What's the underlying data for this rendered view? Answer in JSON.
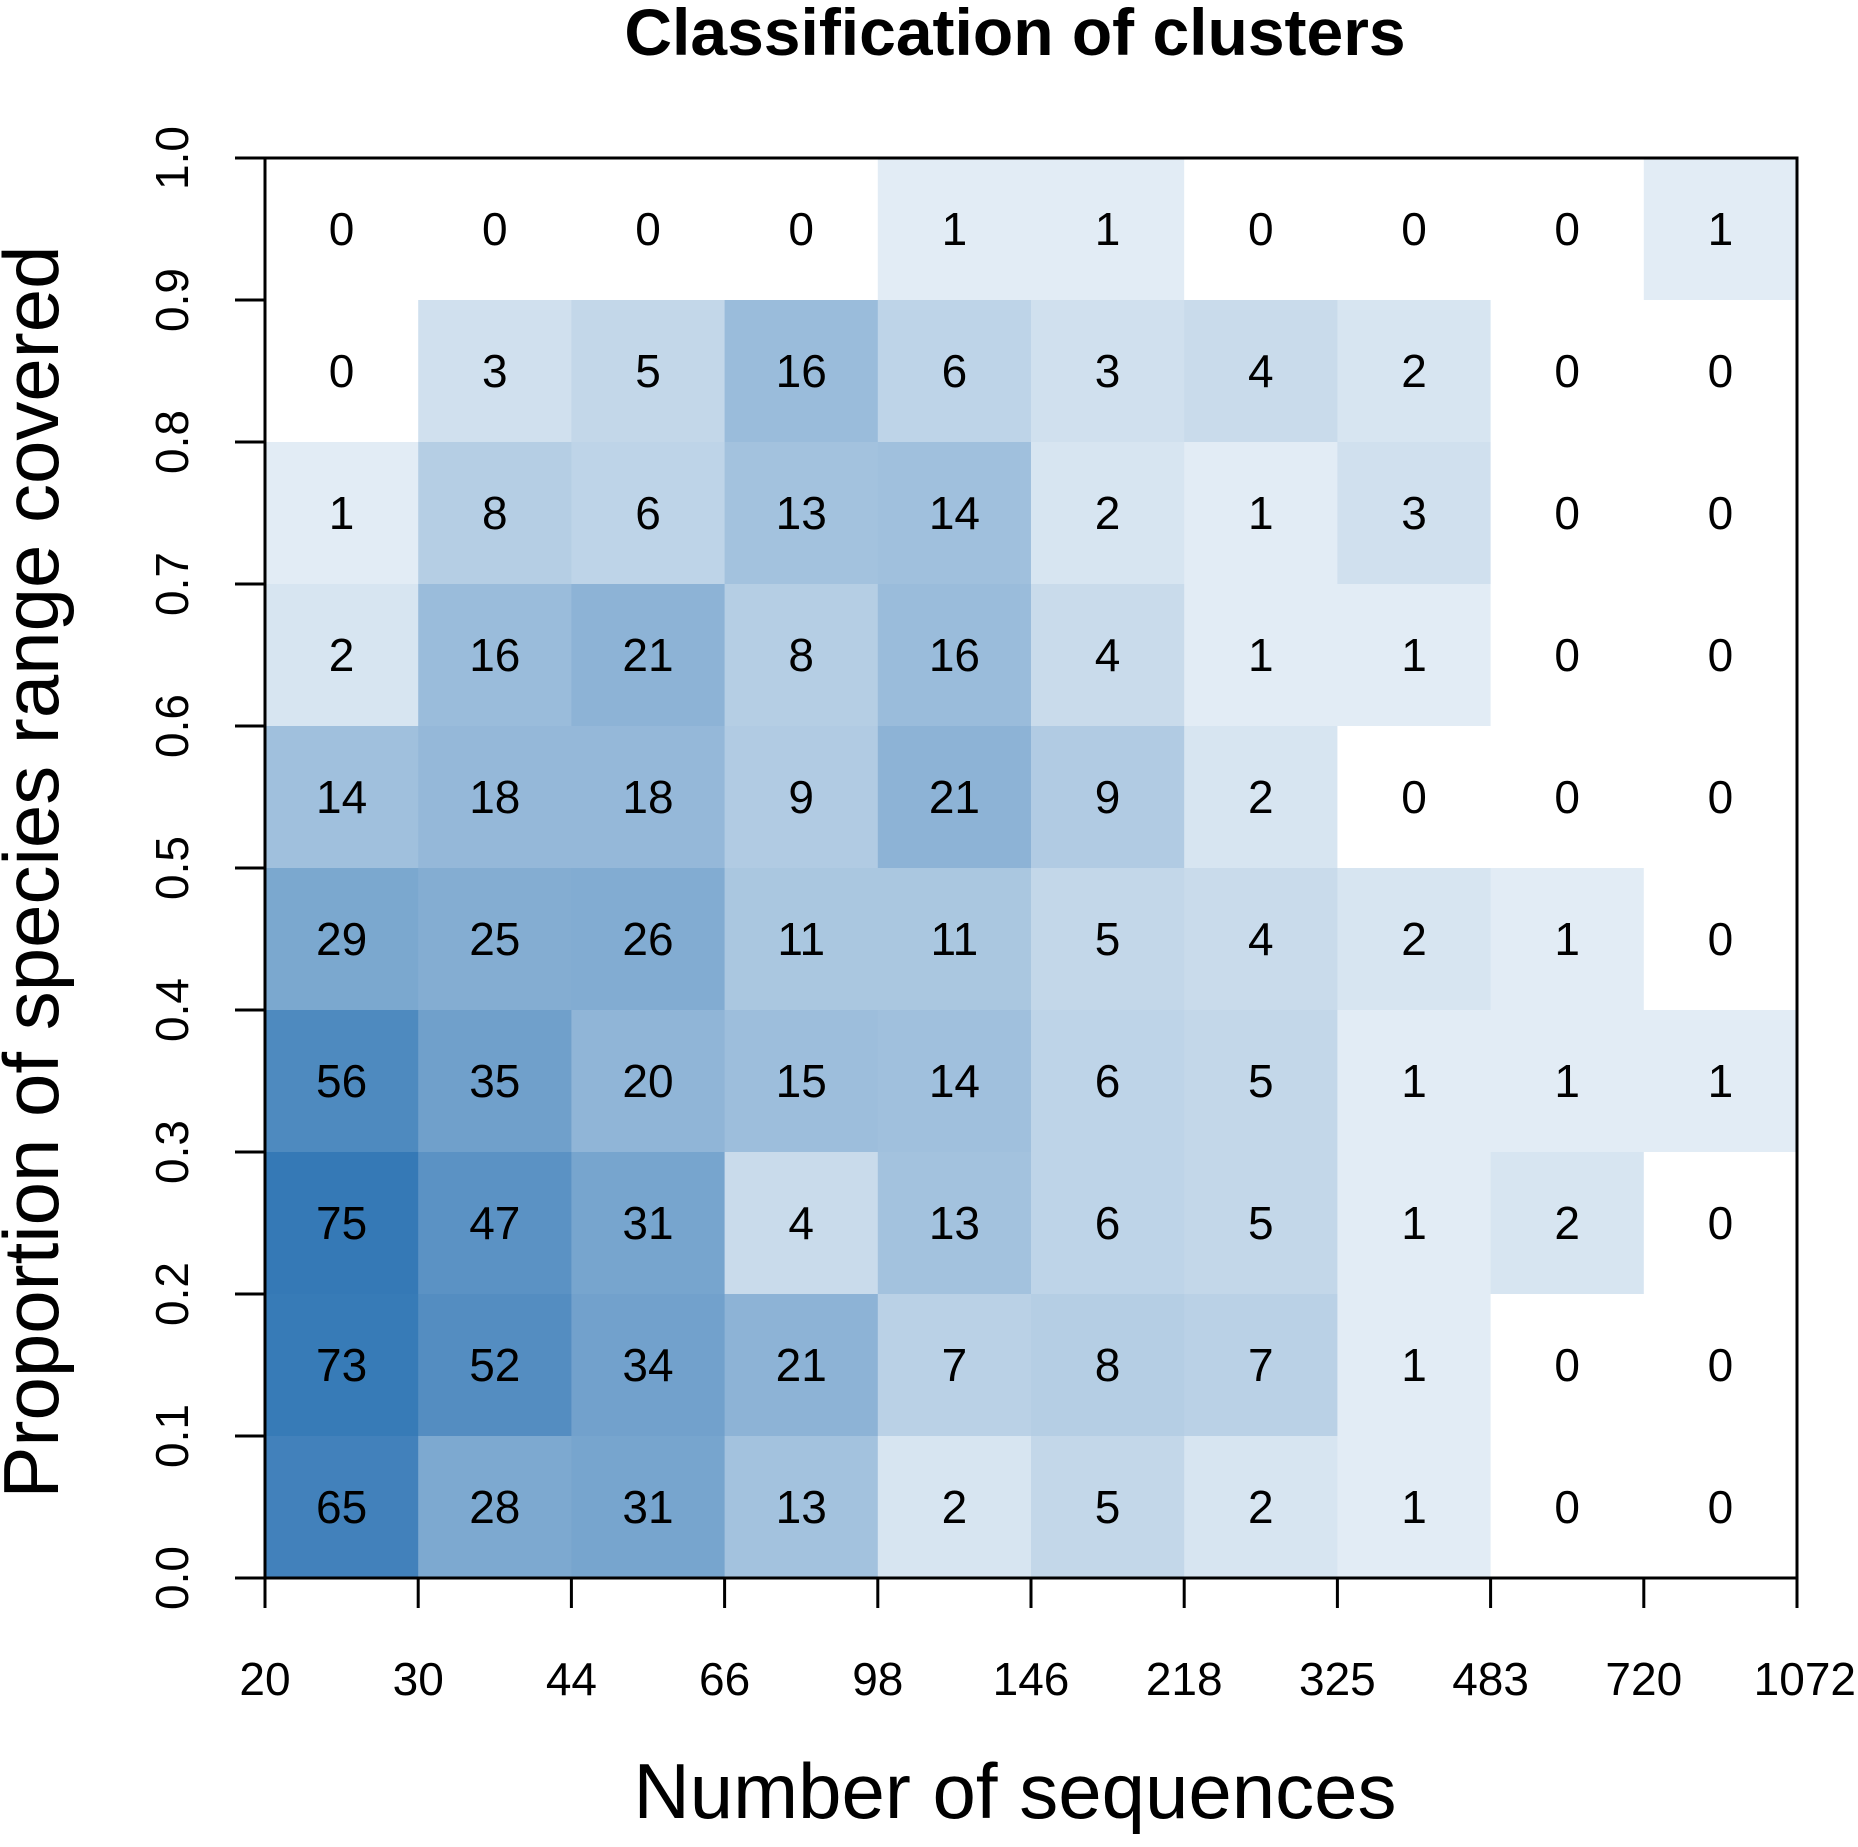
{
  "chart_data": {
    "type": "heatmap",
    "title": "Classification of clusters",
    "xlabel": "Number of sequences",
    "ylabel": "Proportion of species range covered",
    "x_ticks": [
      "20",
      "30",
      "44",
      "66",
      "98",
      "146",
      "218",
      "325",
      "483",
      "720",
      "1072"
    ],
    "y_ticks": [
      "0.0",
      "0.1",
      "0.2",
      "0.3",
      "0.4",
      "0.5",
      "0.6",
      "0.7",
      "0.8",
      "0.9",
      "1.0"
    ],
    "y_range": [
      0,
      1
    ],
    "color_low": "#ffffff",
    "color_high": "#3579b6",
    "rows": [
      {
        "y_range": [
          0.9,
          1.0
        ],
        "values": [
          0,
          0,
          0,
          0,
          1,
          1,
          0,
          0,
          0,
          1
        ]
      },
      {
        "y_range": [
          0.8,
          0.9
        ],
        "values": [
          0,
          3,
          5,
          16,
          6,
          3,
          4,
          2,
          0,
          0
        ]
      },
      {
        "y_range": [
          0.7,
          0.8
        ],
        "values": [
          1,
          8,
          6,
          13,
          14,
          2,
          1,
          3,
          0,
          0
        ]
      },
      {
        "y_range": [
          0.6,
          0.7
        ],
        "values": [
          2,
          16,
          21,
          8,
          16,
          4,
          1,
          1,
          0,
          0
        ]
      },
      {
        "y_range": [
          0.5,
          0.6
        ],
        "values": [
          14,
          18,
          18,
          9,
          21,
          9,
          2,
          0,
          0,
          0
        ]
      },
      {
        "y_range": [
          0.4,
          0.5
        ],
        "values": [
          29,
          25,
          26,
          11,
          11,
          5,
          4,
          2,
          1,
          0
        ]
      },
      {
        "y_range": [
          0.3,
          0.4
        ],
        "values": [
          56,
          35,
          20,
          15,
          14,
          6,
          5,
          1,
          1,
          1
        ]
      },
      {
        "y_range": [
          0.2,
          0.3
        ],
        "values": [
          75,
          47,
          31,
          4,
          13,
          6,
          5,
          1,
          2,
          0
        ]
      },
      {
        "y_range": [
          0.1,
          0.2
        ],
        "values": [
          73,
          52,
          34,
          21,
          7,
          8,
          7,
          1,
          0,
          0
        ]
      },
      {
        "y_range": [
          0.0,
          0.1
        ],
        "values": [
          65,
          28,
          31,
          13,
          2,
          5,
          2,
          1,
          0,
          0
        ]
      }
    ]
  }
}
